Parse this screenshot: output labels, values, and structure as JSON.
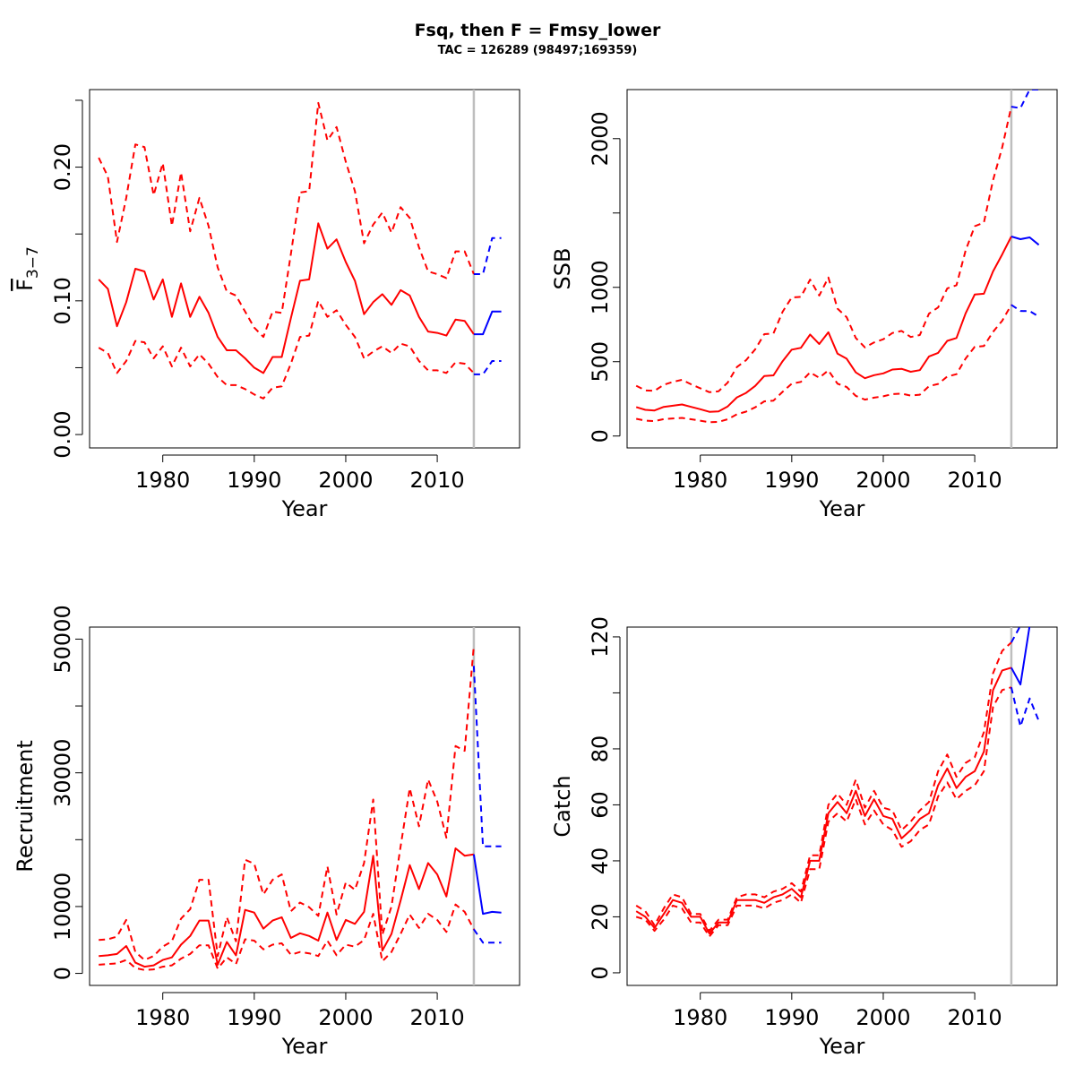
{
  "figure": {
    "title": "Fsq, then F = Fmsy_lower",
    "subtitle": "TAC = 126289 (98497;169359)"
  },
  "colors": {
    "historic": "#ff0000",
    "projection": "#0000ff",
    "vline": "#bebebe"
  },
  "chart_data": [
    {
      "id": "fbar",
      "type": "line",
      "xlabel": "Year",
      "ylabel_main": "F",
      "ylabel_sub": "3−7",
      "xlim": [
        1972,
        2019
      ],
      "ylim": [
        -0.01,
        0.258
      ],
      "xticks": [
        1980,
        1990,
        2000,
        2010
      ],
      "yticks": [
        0.0,
        0.05,
        0.1,
        0.15,
        0.2,
        0.25
      ],
      "ytick_labels": [
        "0.00",
        "",
        "0.10",
        "",
        "0.20",
        ""
      ],
      "vline_x": 2014,
      "x": [
        1973,
        1974,
        1975,
        1976,
        1977,
        1978,
        1979,
        1980,
        1981,
        1982,
        1983,
        1984,
        1985,
        1986,
        1987,
        1988,
        1989,
        1990,
        1991,
        1992,
        1993,
        1994,
        1995,
        1996,
        1997,
        1998,
        1999,
        2000,
        2001,
        2002,
        2003,
        2004,
        2005,
        2006,
        2007,
        2008,
        2009,
        2010,
        2011,
        2012,
        2013,
        2014
      ],
      "series": [
        {
          "role": "median",
          "style": "solid",
          "values": [
            0.116,
            0.109,
            0.081,
            0.099,
            0.124,
            0.122,
            0.101,
            0.116,
            0.088,
            0.113,
            0.088,
            0.103,
            0.091,
            0.073,
            0.063,
            0.063,
            0.057,
            0.05,
            0.046,
            0.058,
            0.058,
            0.087,
            0.115,
            0.116,
            0.158,
            0.139,
            0.146,
            0.129,
            0.115,
            0.09,
            0.099,
            0.105,
            0.097,
            0.108,
            0.104,
            0.088,
            0.077,
            0.076,
            0.074,
            0.086,
            0.085,
            0.075
          ]
        },
        {
          "role": "upper",
          "style": "dashed",
          "values": [
            0.207,
            0.193,
            0.144,
            0.177,
            0.217,
            0.215,
            0.179,
            0.203,
            0.156,
            0.196,
            0.152,
            0.177,
            0.156,
            0.125,
            0.107,
            0.104,
            0.092,
            0.08,
            0.073,
            0.092,
            0.091,
            0.135,
            0.181,
            0.182,
            0.248,
            0.22,
            0.23,
            0.204,
            0.182,
            0.143,
            0.157,
            0.166,
            0.151,
            0.17,
            0.162,
            0.14,
            0.122,
            0.12,
            0.117,
            0.137,
            0.137,
            0.12
          ]
        },
        {
          "role": "lower",
          "style": "dashed",
          "values": [
            0.065,
            0.061,
            0.046,
            0.055,
            0.07,
            0.069,
            0.057,
            0.066,
            0.051,
            0.065,
            0.051,
            0.06,
            0.053,
            0.043,
            0.037,
            0.037,
            0.034,
            0.03,
            0.027,
            0.035,
            0.036,
            0.053,
            0.073,
            0.074,
            0.1,
            0.088,
            0.093,
            0.082,
            0.073,
            0.057,
            0.062,
            0.066,
            0.061,
            0.068,
            0.066,
            0.055,
            0.048,
            0.048,
            0.046,
            0.054,
            0.053,
            0.046
          ]
        }
      ],
      "projection": {
        "x": [
          2014,
          2015,
          2016,
          2017
        ],
        "series": [
          {
            "role": "median",
            "style": "solid",
            "values": [
              0.075,
              0.075,
              0.092,
              0.092
            ]
          },
          {
            "role": "upper",
            "style": "dashed",
            "values": [
              0.12,
              0.12,
              0.147,
              0.147
            ]
          },
          {
            "role": "lower",
            "style": "dashed",
            "values": [
              0.045,
              0.045,
              0.055,
              0.055
            ]
          }
        ]
      }
    },
    {
      "id": "ssb",
      "type": "line",
      "xlabel": "Year",
      "ylabel": "SSB",
      "xlim": [
        1972,
        2019
      ],
      "ylim": [
        -80,
        2330
      ],
      "xticks": [
        1980,
        1990,
        2000,
        2010
      ],
      "yticks": [
        0,
        500,
        1000,
        1500,
        2000
      ],
      "ytick_labels": [
        "0",
        "500",
        "1000",
        "",
        "2000"
      ],
      "vline_x": 2014,
      "x": [
        1973,
        1974,
        1975,
        1976,
        1977,
        1978,
        1979,
        1980,
        1981,
        1982,
        1983,
        1984,
        1985,
        1986,
        1987,
        1988,
        1989,
        1990,
        1991,
        1992,
        1993,
        1994,
        1995,
        1996,
        1997,
        1998,
        1999,
        2000,
        2001,
        2002,
        2003,
        2004,
        2005,
        2006,
        2007,
        2008,
        2009,
        2010,
        2011,
        2012,
        2013,
        2014
      ],
      "series": [
        {
          "role": "median",
          "style": "solid",
          "values": [
            195,
            176,
            172,
            196,
            204,
            212,
            196,
            180,
            163,
            166,
            199,
            260,
            290,
            337,
            404,
            408,
            503,
            581,
            593,
            683,
            619,
            698,
            554,
            520,
            428,
            389,
            409,
            421,
            447,
            452,
            432,
            443,
            535,
            559,
            640,
            659,
            825,
            952,
            957,
            1107,
            1221,
            1342
          ]
        },
        {
          "role": "upper",
          "style": "dashed",
          "values": [
            338,
            307,
            304,
            345,
            364,
            378,
            348,
            321,
            295,
            301,
            359,
            464,
            510,
            583,
            685,
            690,
            836,
            932,
            936,
            1052,
            945,
            1066,
            857,
            799,
            659,
            596,
            629,
            651,
            693,
            707,
            666,
            679,
            823,
            865,
            993,
            1014,
            1248,
            1411,
            1435,
            1720,
            1940,
            2215
          ]
        },
        {
          "role": "lower",
          "style": "dashed",
          "values": [
            116,
            103,
            100,
            114,
            118,
            122,
            113,
            103,
            93,
            95,
            113,
            146,
            164,
            193,
            233,
            238,
            297,
            352,
            364,
            428,
            392,
            442,
            352,
            330,
            270,
            245,
            258,
            267,
            282,
            285,
            272,
            278,
            335,
            350,
            400,
            416,
            521,
            600,
            605,
            700,
            775,
            882
          ]
        }
      ],
      "projection": {
        "x": [
          2014,
          2015,
          2016,
          2017
        ],
        "series": [
          {
            "role": "median",
            "style": "solid",
            "values": [
              1342,
              1324,
              1336,
              1286
            ]
          },
          {
            "role": "upper",
            "style": "dashed",
            "values": [
              2215,
              2205,
              2330,
              2330
            ]
          },
          {
            "role": "lower",
            "style": "dashed",
            "values": [
              882,
              841,
              840,
              803
            ]
          }
        ]
      }
    },
    {
      "id": "recruitment",
      "type": "line",
      "xlabel": "Year",
      "ylabel": "Recruitment",
      "xlim": [
        1972,
        2019
      ],
      "ylim": [
        -1800,
        51800
      ],
      "xticks": [
        1980,
        1990,
        2000,
        2010
      ],
      "yticks": [
        0,
        10000,
        20000,
        30000,
        40000,
        50000
      ],
      "ytick_labels": [
        "0",
        "10000",
        "",
        "30000",
        "",
        "50000"
      ],
      "vline_x": 2014,
      "x": [
        1973,
        1974,
        1975,
        1976,
        1977,
        1978,
        1979,
        1980,
        1981,
        1982,
        1983,
        1984,
        1985,
        1986,
        1987,
        1988,
        1989,
        1990,
        1991,
        1992,
        1993,
        1994,
        1995,
        1996,
        1997,
        1998,
        1999,
        2000,
        2001,
        2002,
        2003,
        2004,
        2005,
        2006,
        2007,
        2008,
        2009,
        2010,
        2011,
        2012,
        2013,
        2014
      ],
      "series": [
        {
          "role": "median",
          "style": "solid",
          "values": [
            2600,
            2700,
            2900,
            4100,
            1600,
            1000,
            1200,
            2000,
            2400,
            4300,
            5600,
            7900,
            7900,
            1300,
            4700,
            2700,
            9500,
            9100,
            6700,
            7900,
            8400,
            5300,
            6000,
            5600,
            4900,
            9100,
            5000,
            8000,
            7400,
            9200,
            17600,
            3400,
            5900,
            10900,
            16200,
            12600,
            16500,
            14800,
            11500,
            18700,
            17600,
            17800
          ]
        },
        {
          "role": "upper",
          "style": "dashed",
          "values": [
            5000,
            5100,
            5500,
            8000,
            3200,
            2000,
            2600,
            4000,
            4800,
            8200,
            9600,
            14000,
            14000,
            2600,
            8400,
            4800,
            17000,
            16400,
            11800,
            14000,
            14800,
            9300,
            10600,
            9900,
            8600,
            16000,
            8800,
            13600,
            12500,
            16500,
            26000,
            5800,
            10000,
            19000,
            27700,
            22000,
            29000,
            25700,
            20300,
            34000,
            33300,
            49000
          ]
        },
        {
          "role": "lower",
          "style": "dashed",
          "values": [
            1300,
            1400,
            1500,
            2000,
            800,
            500,
            600,
            1000,
            1200,
            2200,
            2900,
            4200,
            4200,
            700,
            2400,
            1400,
            5100,
            4900,
            3600,
            4300,
            4500,
            2800,
            3200,
            3000,
            2600,
            4900,
            2700,
            4300,
            4000,
            5000,
            8900,
            1800,
            3200,
            5900,
            8800,
            6800,
            8900,
            8000,
            6200,
            10300,
            9200,
            6600
          ]
        }
      ],
      "projection": {
        "x": [
          2014,
          2015,
          2016,
          2017
        ],
        "series": [
          {
            "role": "median",
            "style": "solid",
            "values": [
              17800,
              8900,
              9200,
              9100
            ]
          },
          {
            "role": "upper",
            "style": "dashed",
            "values": [
              46000,
              19000,
              19000,
              19000
            ]
          },
          {
            "role": "lower",
            "style": "dashed",
            "values": [
              6600,
              4600,
              4600,
              4600
            ]
          }
        ]
      }
    },
    {
      "id": "catch",
      "type": "line",
      "xlabel": "Year",
      "ylabel": "Catch",
      "xlim": [
        1972,
        2019
      ],
      "ylim": [
        -4.5,
        123.5
      ],
      "xticks": [
        1980,
        1990,
        2000,
        2010
      ],
      "yticks": [
        0,
        20,
        40,
        60,
        80,
        100,
        120
      ],
      "ytick_labels": [
        "0",
        "20",
        "40",
        "60",
        "80",
        "",
        "120"
      ],
      "vline_x": 2014,
      "x": [
        1973,
        1974,
        1975,
        1976,
        1977,
        1978,
        1979,
        1980,
        1981,
        1982,
        1983,
        1984,
        1985,
        1986,
        1987,
        1988,
        1989,
        1990,
        1991,
        1992,
        1993,
        1994,
        1995,
        1996,
        1997,
        1998,
        1999,
        2000,
        2001,
        2002,
        2003,
        2004,
        2005,
        2006,
        2007,
        2008,
        2009,
        2010,
        2011,
        2012,
        2013,
        2014
      ],
      "series": [
        {
          "role": "median",
          "style": "solid",
          "values": [
            22,
            20,
            16,
            21,
            26,
            25,
            20,
            20,
            14,
            18,
            18,
            26,
            26,
            26,
            25,
            27,
            28,
            30,
            27,
            40,
            40,
            57,
            61,
            57,
            65,
            56,
            62,
            56,
            55,
            48,
            51,
            55,
            57,
            67,
            73,
            66,
            70,
            72,
            79,
            101,
            108,
            109
          ]
        },
        {
          "role": "upper",
          "style": "dashed",
          "values": [
            24,
            22,
            17,
            23,
            28,
            27,
            21,
            21,
            15,
            19,
            19,
            27,
            28,
            28,
            27,
            29,
            30,
            32,
            29,
            42,
            42,
            60,
            64,
            60,
            69,
            59,
            65,
            59,
            58,
            51,
            54,
            58,
            61,
            72,
            78,
            70,
            75,
            77,
            86,
            107,
            115,
            118
          ]
        },
        {
          "role": "lower",
          "style": "dashed",
          "values": [
            20,
            19,
            15,
            19,
            24,
            23,
            18,
            18,
            13,
            17,
            17,
            24,
            24,
            24,
            23,
            25,
            26,
            28,
            25,
            37,
            37,
            54,
            57,
            54,
            62,
            53,
            58,
            53,
            51,
            45,
            47,
            51,
            53,
            63,
            68,
            62,
            65,
            67,
            72,
            95,
            101,
            102
          ]
        }
      ],
      "projection": {
        "x": [
          2014,
          2015,
          2016,
          2017
        ],
        "series": [
          {
            "role": "median",
            "style": "solid",
            "values": [
              109,
              103,
              124,
              124
            ]
          },
          {
            "role": "upper",
            "style": "dashed",
            "values": [
              118,
              124,
              124,
              124
            ]
          },
          {
            "role": "lower",
            "style": "dashed",
            "values": [
              102,
              88,
              98,
              90
            ]
          }
        ]
      }
    }
  ]
}
